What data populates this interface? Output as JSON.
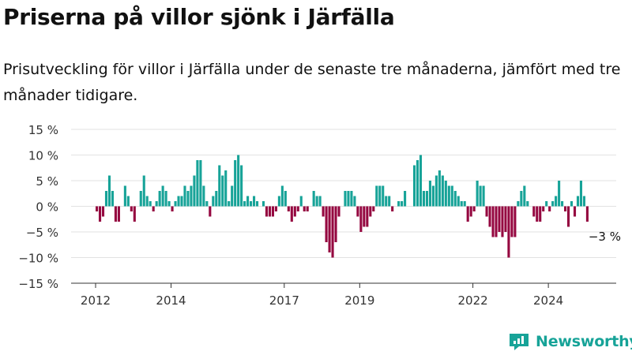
{
  "title": "Priserna på villor sjönk i Järfälla",
  "subtitle": "Prisutveckling för villor i Järfälla under de senaste tre månaderna, jämfört med tre månader tidigare.",
  "brand": "Newsworthy",
  "colors": {
    "positive": "#17a398",
    "negative": "#950740",
    "grid": "#e2e2e2",
    "axis": "#333333"
  },
  "chart_data": {
    "type": "bar",
    "title": "Priserna på villor sjönk i Järfälla",
    "xlabel": "",
    "ylabel": "",
    "ylim": [
      -15,
      15
    ],
    "yticks": [
      15,
      10,
      5,
      0,
      -5,
      -10,
      -15
    ],
    "ytick_labels": [
      "15 %",
      "10 %",
      "5 %",
      "0 %",
      "−5 %",
      "−10 %",
      "−15 %"
    ],
    "xticks": [
      2012,
      2014,
      2017,
      2019,
      2022,
      2024
    ],
    "xtick_labels": [
      "2012",
      "2014",
      "2017",
      "2019",
      "2022",
      "2024"
    ],
    "start": "2012-01",
    "grid": true,
    "annotation": "−3 %",
    "values": [
      -1,
      -3,
      -2,
      3,
      6,
      3,
      -3,
      -3,
      0,
      4,
      2,
      -1,
      -3,
      0,
      3,
      6,
      2,
      1,
      -1,
      1,
      3,
      4,
      3,
      1,
      -1,
      1,
      2,
      2,
      4,
      3,
      4,
      6,
      9,
      9,
      4,
      1,
      -2,
      2,
      3,
      8,
      6,
      7,
      1,
      4,
      9,
      10,
      8,
      1,
      2,
      1,
      2,
      1,
      0,
      1,
      -2,
      -2,
      -2,
      -1,
      2,
      4,
      3,
      -1,
      -3,
      -2,
      -1,
      2,
      -1,
      -1,
      0,
      3,
      2,
      2,
      -2,
      -7,
      -9,
      -10,
      -7,
      -2,
      0,
      3,
      3,
      3,
      2,
      -2,
      -5,
      -4,
      -4,
      -2,
      -1,
      4,
      4,
      4,
      2,
      2,
      -1,
      0,
      1,
      1,
      3,
      0,
      0,
      8,
      9,
      10,
      3,
      3,
      5,
      4,
      6,
      7,
      6,
      5,
      4,
      4,
      3,
      2,
      1,
      1,
      -3,
      -2,
      -1,
      5,
      4,
      4,
      -2,
      -4,
      -6,
      -6,
      -5,
      -6,
      -5,
      -10,
      -6,
      -6,
      1,
      3,
      4,
      1,
      0,
      -2,
      -3,
      -3,
      -1,
      1,
      -1,
      1,
      2,
      5,
      1,
      -1,
      -4,
      1,
      -2,
      2,
      5,
      2,
      -3
    ]
  }
}
